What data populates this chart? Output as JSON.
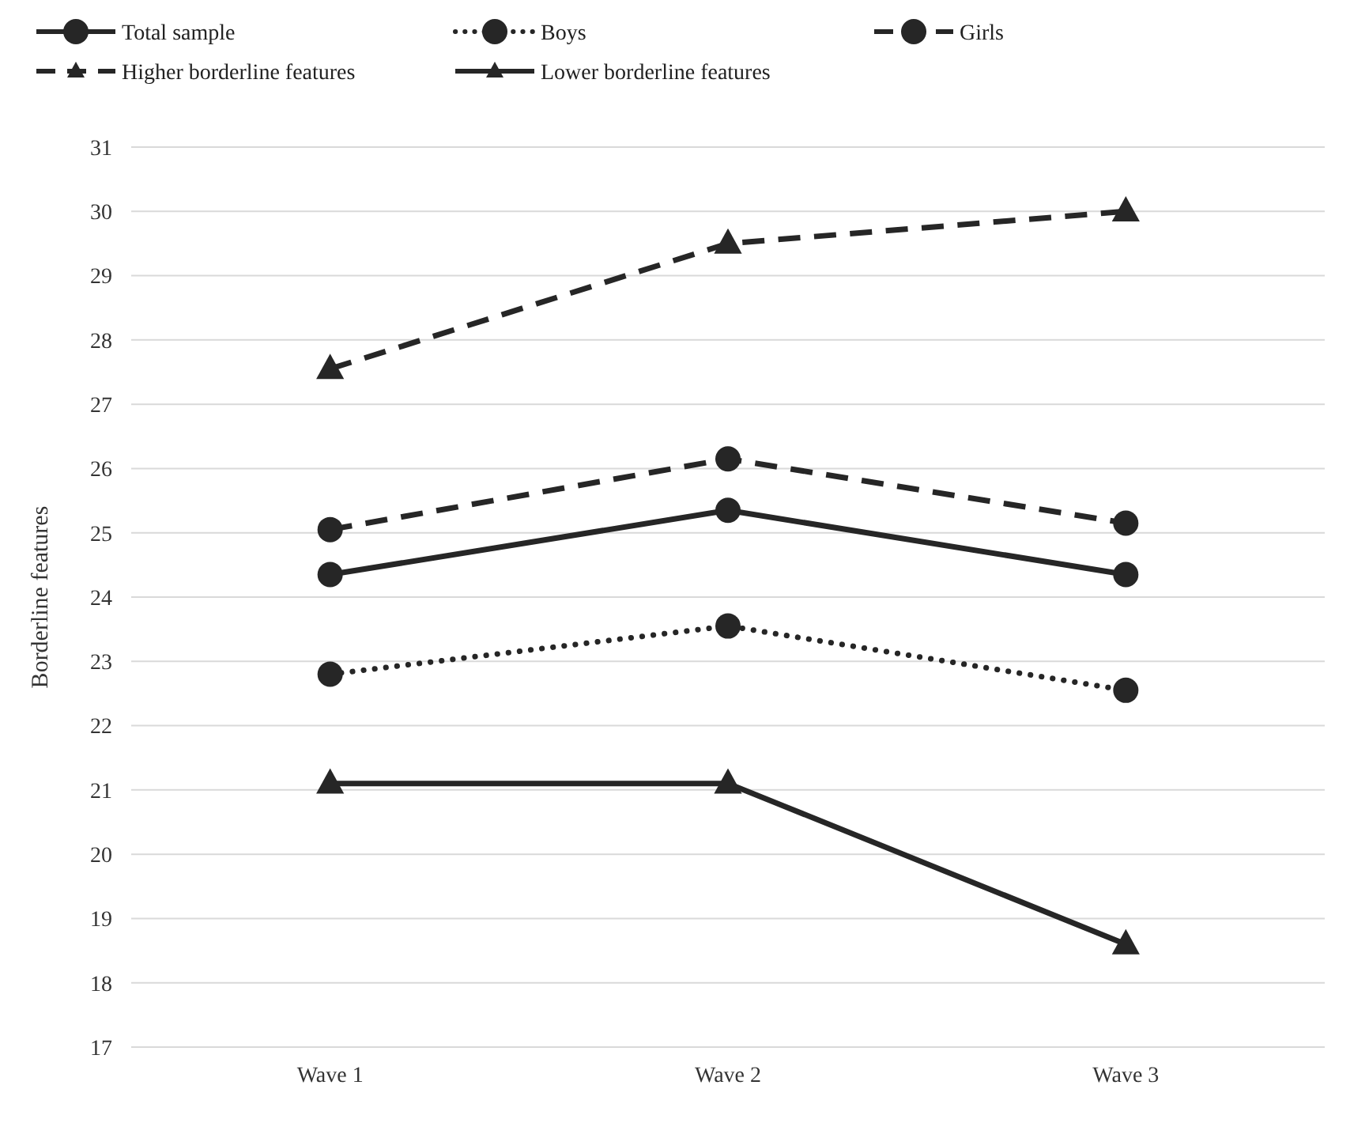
{
  "chart_data": {
    "type": "line",
    "ylabel": "Borderline features",
    "categories": [
      "Wave 1",
      "Wave 2",
      "Wave 3"
    ],
    "ylim": [
      17,
      31
    ],
    "yticks": [
      17,
      18,
      19,
      20,
      21,
      22,
      23,
      24,
      25,
      26,
      27,
      28,
      29,
      30,
      31
    ],
    "grid": "y",
    "legend": "top",
    "series": [
      {
        "name": "Total sample",
        "color": "#262626",
        "values": [
          24.35,
          25.35,
          24.35
        ],
        "marker": "circle",
        "line_style": "solid"
      },
      {
        "name": "Boys",
        "color": "#262626",
        "values": [
          22.8,
          23.55,
          22.55
        ],
        "marker": "circle",
        "line_style": "dotted"
      },
      {
        "name": "Girls",
        "color": "#262626",
        "values": [
          25.05,
          26.15,
          25.15
        ],
        "marker": "circle",
        "line_style": "dashed"
      },
      {
        "name": "Higher borderline features",
        "color": "#262626",
        "values": [
          27.55,
          29.5,
          30.0
        ],
        "marker": "triangle",
        "line_style": "dashed"
      },
      {
        "name": "Lower borderline features",
        "color": "#262626",
        "values": [
          21.1,
          21.1,
          18.6
        ],
        "marker": "triangle",
        "line_style": "solid"
      }
    ]
  }
}
